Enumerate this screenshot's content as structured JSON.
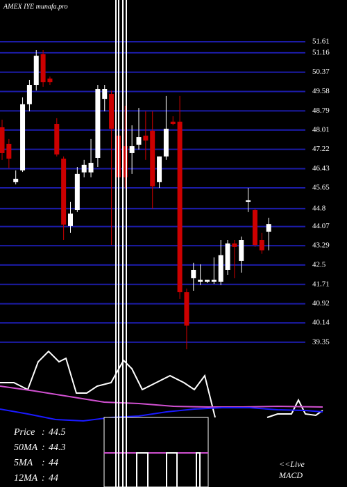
{
  "chart_data": {
    "type": "candlestick",
    "title": "AMEX IYE munafa.pro",
    "ylim": [
      39.12,
      53.03
    ],
    "yticks": [
      51.61,
      51.16,
      50.37,
      49.58,
      48.79,
      48.01,
      47.22,
      46.43,
      45.65,
      44.8,
      44.07,
      43.29,
      42.5,
      41.71,
      40.92,
      40.14,
      39.35
    ],
    "grid": true,
    "up_color": "#ffffff",
    "down_color": "#cc0000",
    "grid_color": "#1c1ca8",
    "candles": [
      {
        "open": 48.12,
        "high": 48.43,
        "low": 46.79,
        "close": 47.07
      },
      {
        "open": 47.44,
        "high": 47.64,
        "low": 46.45,
        "close": 46.84
      },
      {
        "open": 45.88,
        "high": 46.36,
        "low": 45.79,
        "close": 46.02
      },
      {
        "open": 46.36,
        "high": 49.34,
        "low": 46.3,
        "close": 49.06
      },
      {
        "open": 49.06,
        "high": 50.05,
        "low": 48.77,
        "close": 49.85
      },
      {
        "open": 49.85,
        "high": 51.27,
        "low": 49.62,
        "close": 51.04
      },
      {
        "open": 51.1,
        "high": 51.27,
        "low": 49.77,
        "close": 49.96
      },
      {
        "open": 50.11,
        "high": 50.19,
        "low": 49.85,
        "close": 49.96
      },
      {
        "open": 48.26,
        "high": 48.49,
        "low": 46.93,
        "close": 47.01
      },
      {
        "open": 46.84,
        "high": 46.93,
        "low": 43.52,
        "close": 44.15
      },
      {
        "open": 44.09,
        "high": 45.08,
        "low": 43.81,
        "close": 44.6
      },
      {
        "open": 44.74,
        "high": 46.5,
        "low": 44.66,
        "close": 46.22
      },
      {
        "open": 46.28,
        "high": 46.79,
        "low": 46.08,
        "close": 46.59
      },
      {
        "open": 46.28,
        "high": 47.64,
        "low": 46.08,
        "close": 46.67
      },
      {
        "open": 46.87,
        "high": 49.85,
        "low": 46.5,
        "close": 49.68
      },
      {
        "open": 49.28,
        "high": 49.85,
        "low": 48.77,
        "close": 49.68
      },
      {
        "open": 49.48,
        "high": 49.62,
        "low": 43.32,
        "close": 48.06
      },
      {
        "open": 47.78,
        "high": 48.49,
        "low": 45.79,
        "close": 46.08
      },
      {
        "open": 47.35,
        "high": 49.0,
        "low": 45.65,
        "close": 46.08
      },
      {
        "open": 47.07,
        "high": 48.2,
        "low": 46.22,
        "close": 47.35
      },
      {
        "open": 47.41,
        "high": 48.91,
        "low": 47.21,
        "close": 47.72
      },
      {
        "open": 47.78,
        "high": 48.77,
        "low": 46.79,
        "close": 47.58
      },
      {
        "open": 47.98,
        "high": 48.77,
        "low": 44.8,
        "close": 45.71
      },
      {
        "open": 45.88,
        "high": 46.93,
        "low": 45.65,
        "close": 46.93
      },
      {
        "open": 46.93,
        "high": 49.4,
        "low": 46.79,
        "close": 48.06
      },
      {
        "open": 48.35,
        "high": 48.57,
        "low": 48.2,
        "close": 48.26
      },
      {
        "open": 48.35,
        "high": 49.4,
        "low": 41.11,
        "close": 41.39
      },
      {
        "open": 41.39,
        "high": 41.54,
        "low": 39.06,
        "close": 40.03
      },
      {
        "open": 41.96,
        "high": 42.59,
        "low": 41.45,
        "close": 42.3
      },
      {
        "open": 41.82,
        "high": 42.53,
        "low": 41.68,
        "close": 41.9
      },
      {
        "open": 41.82,
        "high": 41.9,
        "low": 41.76,
        "close": 41.9
      },
      {
        "open": 41.82,
        "high": 42.81,
        "low": 41.73,
        "close": 41.9
      },
      {
        "open": 41.82,
        "high": 43.52,
        "low": 41.68,
        "close": 42.9
      },
      {
        "open": 42.3,
        "high": 43.52,
        "low": 42.1,
        "close": 43.38
      },
      {
        "open": 43.38,
        "high": 43.52,
        "low": 41.96,
        "close": 43.24
      },
      {
        "open": 42.67,
        "high": 43.66,
        "low": 42.19,
        "close": 43.52
      },
      {
        "open": 45.08,
        "high": 45.65,
        "low": 44.66,
        "close": 45.14
      },
      {
        "open": 44.74,
        "high": 44.8,
        "low": 43.24,
        "close": 43.32
      },
      {
        "open": 43.52,
        "high": 43.81,
        "low": 42.96,
        "close": 43.1
      },
      {
        "open": 43.86,
        "high": 44.43,
        "low": 43.1,
        "close": 44.17
      }
    ]
  },
  "indicators": {
    "series": [
      {
        "color": "#ffffff",
        "x": [
          0,
          20,
          40,
          55,
          70,
          85,
          95,
          110,
          125,
          140,
          160,
          178,
          190,
          205,
          225,
          245,
          265,
          280,
          295,
          310
        ],
        "values": [
          50,
          50,
          40,
          80,
          95,
          80,
          85,
          35,
          35,
          45,
          50,
          82,
          70,
          40,
          50,
          60,
          50,
          40,
          60,
          0
        ]
      },
      {
        "color": "#ffffff",
        "x": [
          385,
          400,
          420,
          430,
          440,
          455,
          465
        ],
        "values": [
          0,
          5,
          5,
          25,
          5,
          3,
          10
        ]
      },
      {
        "color": "#d050d0",
        "x": [
          0,
          50,
          100,
          150,
          200,
          250,
          300,
          350,
          400,
          465
        ],
        "values": [
          45,
          38,
          30,
          22,
          20,
          16,
          15,
          15,
          16,
          15
        ]
      },
      {
        "color": "#1a1aff",
        "x": [
          0,
          40,
          80,
          120,
          160,
          200,
          240,
          280,
          320,
          360,
          400,
          440,
          465
        ],
        "values": [
          12,
          5,
          -3,
          -5,
          0,
          2,
          8,
          12,
          14,
          14,
          11,
          10,
          8
        ]
      }
    ]
  },
  "stats": [
    {
      "label": "Price",
      "value": 44.5
    },
    {
      "label": "50MA",
      "value": 44.3
    },
    {
      "label": "5MA",
      "value": 44
    },
    {
      "label": "12MA",
      "value": 44
    }
  ],
  "live_label": "<<Live",
  "macd_label": "MACD"
}
